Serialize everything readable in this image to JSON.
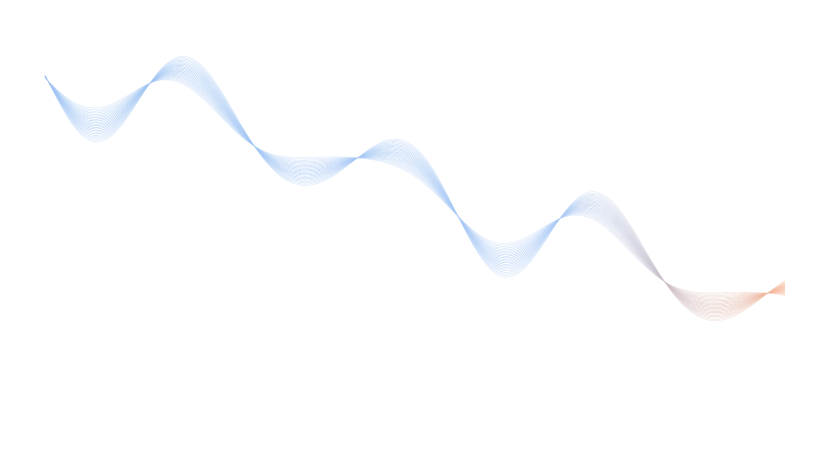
{
  "artwork": {
    "kind": "decorative-line-wave",
    "colors": {
      "start": "#9cc2f2",
      "middle": "#a9c9f5",
      "end": "#f6b494",
      "background": "#ffffff"
    }
  }
}
